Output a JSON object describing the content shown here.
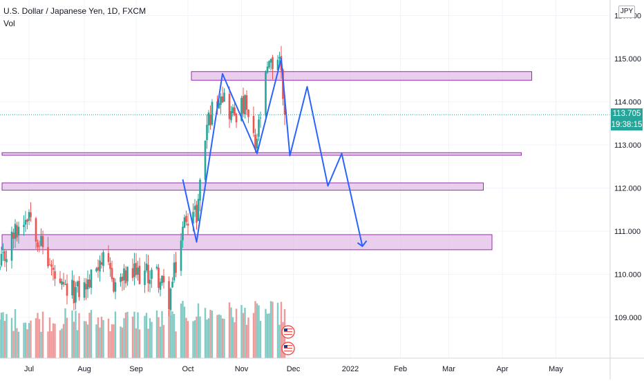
{
  "header": {
    "symbol_line": "U.S. Dollar / Japanese Yen, 1D, FXCM",
    "volume_label": "Vol"
  },
  "currency_badge": "JPY",
  "current_price": {
    "value": "113.705",
    "countdown": "19:38:15",
    "color": "#26a69a"
  },
  "colors": {
    "up": "#26a69a",
    "down": "#ef5350",
    "volume_up": "#80cbc4",
    "volume_down": "#ef9a9a",
    "zone_fill": "#e1bee7",
    "zone_border": "#9c27b0",
    "projection": "#2962ff"
  },
  "chart_data": {
    "type": "candlestick",
    "title": "U.S. Dollar / Japanese Yen, 1D, FXCM",
    "ylim": [
      108.0,
      116.1
    ],
    "y_ticks": [
      "109.000",
      "110.000",
      "111.000",
      "112.000",
      "113.000",
      "114.000",
      "115.000",
      "116.000"
    ],
    "x_ticks": [
      "Jul",
      "Aug",
      "Sep",
      "Oct",
      "Nov",
      "Dec",
      "2022",
      "Feb",
      "Mar",
      "Apr",
      "May"
    ],
    "x_tick_dates": [
      "2021-07-01",
      "2021-08-02",
      "2021-09-01",
      "2021-10-01",
      "2021-11-01",
      "2021-12-01",
      "2022-01-03",
      "2022-02-01",
      "2022-03-01",
      "2022-04-01",
      "2022-05-02"
    ],
    "first_bar_date": "2021-06-14",
    "last_bar_date": "2021-11-26",
    "close_anchors": [
      {
        "date": "2021-06-14",
        "value": 110.1
      },
      {
        "date": "2021-06-22",
        "value": 110.9
      },
      {
        "date": "2021-07-01",
        "value": 111.5
      },
      {
        "date": "2021-07-06",
        "value": 110.9
      },
      {
        "date": "2021-07-19",
        "value": 109.6
      },
      {
        "date": "2021-07-29",
        "value": 109.6
      },
      {
        "date": "2021-08-05",
        "value": 109.8
      },
      {
        "date": "2021-08-11",
        "value": 110.4
      },
      {
        "date": "2021-08-19",
        "value": 109.8
      },
      {
        "date": "2021-08-31",
        "value": 110.0
      },
      {
        "date": "2021-09-13",
        "value": 110.0
      },
      {
        "date": "2021-09-20",
        "value": 109.4
      },
      {
        "date": "2021-09-30",
        "value": 111.4
      },
      {
        "date": "2021-10-06",
        "value": 111.4
      },
      {
        "date": "2021-10-12",
        "value": 113.5
      },
      {
        "date": "2021-10-20",
        "value": 114.3
      },
      {
        "date": "2021-10-26",
        "value": 113.7
      },
      {
        "date": "2021-11-03",
        "value": 113.9
      },
      {
        "date": "2021-11-09",
        "value": 112.9
      },
      {
        "date": "2021-11-16",
        "value": 114.7
      },
      {
        "date": "2021-11-23",
        "value": 115.1
      },
      {
        "date": "2021-11-26",
        "value": 113.7
      }
    ],
    "support_resistance_zones": [
      {
        "date_start": "2021-10-03",
        "date_end": "2022-04-18",
        "top": 114.7,
        "bottom": 114.5
      },
      {
        "date_start": "2021-06-14",
        "date_end": "2022-04-12",
        "top": 112.82,
        "bottom": 112.76
      },
      {
        "date_start": "2021-06-14",
        "date_end": "2022-03-21",
        "top": 112.12,
        "bottom": 111.95
      },
      {
        "date_start": "2021-06-14",
        "date_end": "2022-03-26",
        "top": 110.92,
        "bottom": 110.57
      }
    ],
    "drawn_path": [
      {
        "date": "2021-09-28",
        "value": 112.2
      },
      {
        "date": "2021-10-06",
        "value": 110.75
      },
      {
        "date": "2021-10-21",
        "value": 114.65
      },
      {
        "date": "2021-11-10",
        "value": 112.8
      },
      {
        "date": "2021-11-24",
        "value": 115.0
      },
      {
        "date": "2021-11-29",
        "value": 112.75
      },
      {
        "date": "2021-12-09",
        "value": 114.35
      },
      {
        "date": "2021-12-21",
        "value": 112.05
      },
      {
        "date": "2021-12-29",
        "value": 112.8
      },
      {
        "date": "2022-01-10",
        "value": 110.65
      }
    ],
    "projection_arrow_end": {
      "date": "2022-01-10",
      "value": 110.65
    }
  }
}
